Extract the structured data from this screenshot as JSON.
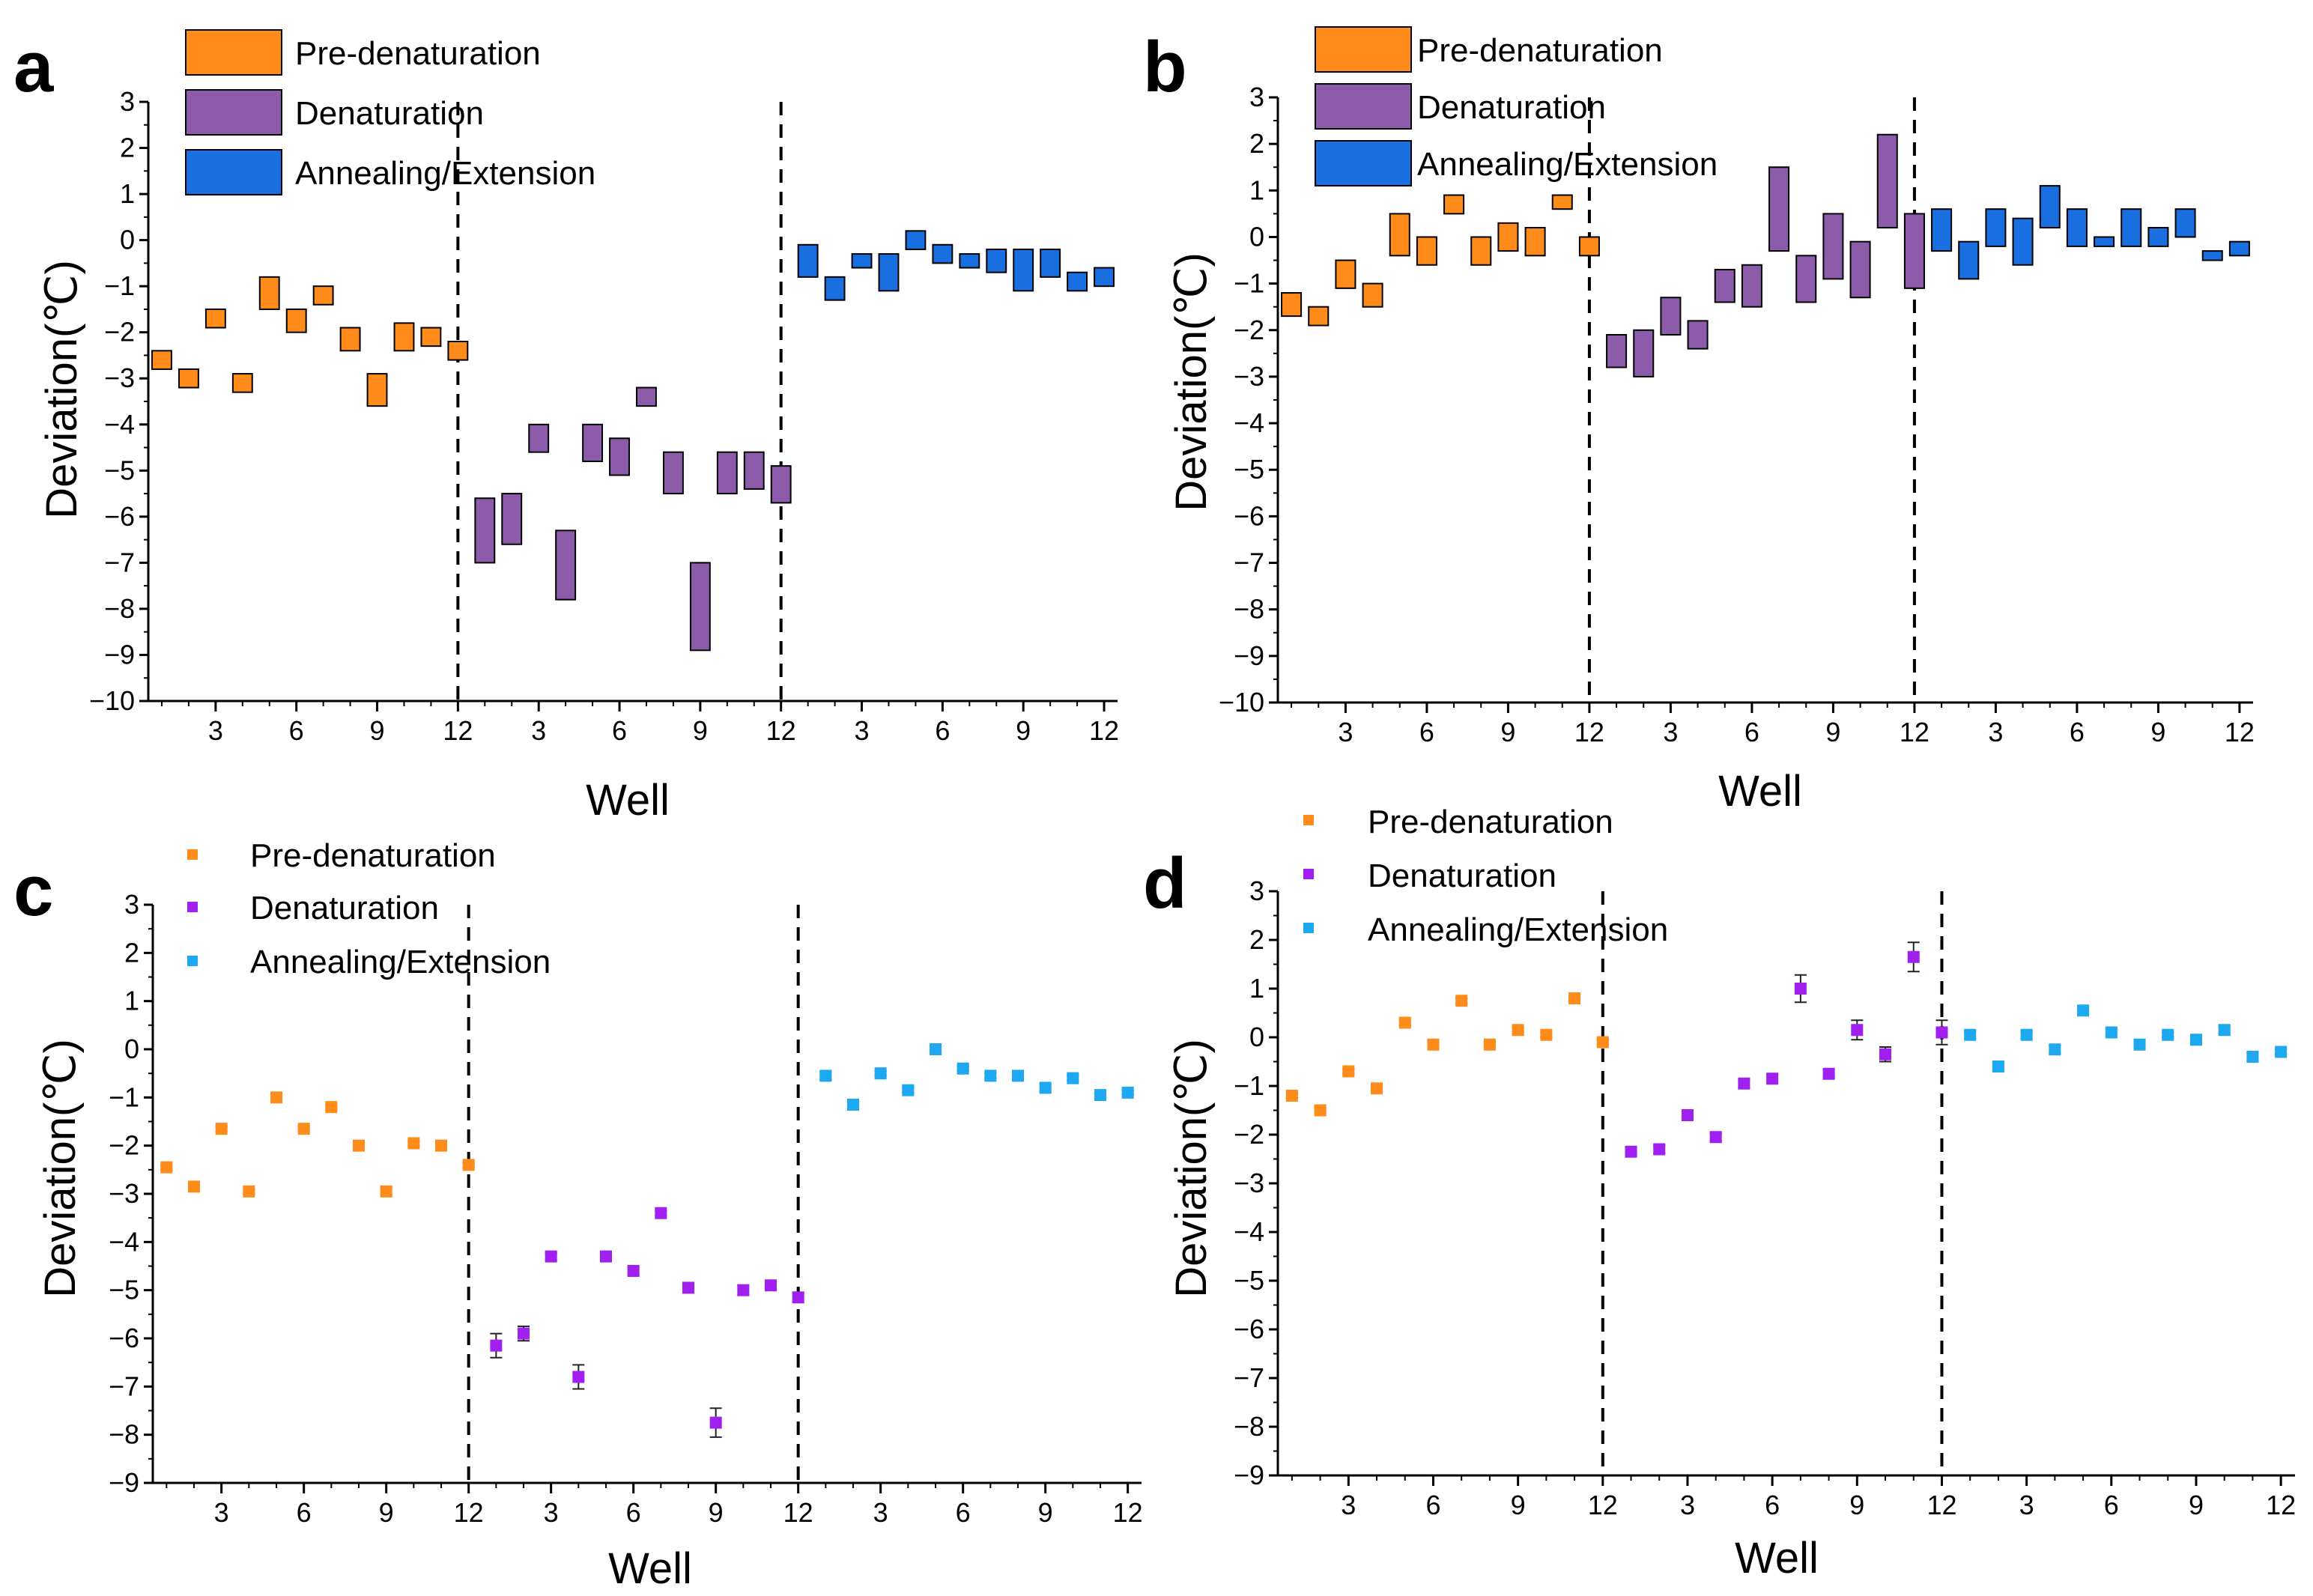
{
  "figure": {
    "layout": "2x2 grid of panels"
  },
  "colors": {
    "pre": "#FF8C1A",
    "den": "#8C5BAA",
    "ann": "#1A6FE0",
    "pre_pt": "#FF8C1A",
    "den_pt": "#A020F0",
    "ann_pt": "#1EA8F0",
    "stroke": "#000000"
  },
  "chart_data": [
    {
      "panel": "a",
      "type": "box",
      "xlabel": "Well",
      "ylabel": "Deviation(℃)",
      "ylim": [
        -10,
        3
      ],
      "yticks": [
        "3",
        "2",
        "1",
        "0",
        "−1",
        "−2",
        "−3",
        "−4",
        "−5",
        "−6",
        "−7",
        "−8",
        "−9",
        "−10"
      ],
      "xtick_labels": [
        "3",
        "6",
        "9",
        "12",
        "3",
        "6",
        "9",
        "12",
        "3",
        "6",
        "9",
        "12"
      ],
      "group_dividers_at_well": [
        12,
        24
      ],
      "legend_position": "top-left",
      "series": [
        {
          "name": "Pre-denaturation",
          "color_key": "pre",
          "low": [
            -2.8,
            -3.2,
            -1.9,
            -3.3,
            -1.5,
            -2.0,
            -1.4,
            -2.4,
            -3.6,
            -2.4,
            -2.3,
            -2.6
          ],
          "high": [
            -2.4,
            -2.8,
            -1.5,
            -2.9,
            -0.8,
            -1.5,
            -1.0,
            -1.9,
            -2.9,
            -1.8,
            -1.9,
            -2.2
          ]
        },
        {
          "name": "Denaturation",
          "color_key": "den",
          "low": [
            -7.0,
            -6.6,
            -4.6,
            -7.8,
            -4.8,
            -5.1,
            -3.6,
            -5.5,
            -8.9,
            -5.5,
            -5.4,
            -5.7
          ],
          "high": [
            -5.6,
            -5.5,
            -4.0,
            -6.3,
            -4.0,
            -4.3,
            -3.2,
            -4.6,
            -7.0,
            -4.6,
            -4.6,
            -4.9
          ]
        },
        {
          "name": "Annealing/Extension",
          "color_key": "ann",
          "low": [
            -0.8,
            -1.3,
            -0.6,
            -1.1,
            -0.2,
            -0.5,
            -0.6,
            -0.7,
            -1.1,
            -0.8,
            -1.1,
            -1.0
          ],
          "high": [
            -0.1,
            -0.8,
            -0.3,
            -0.3,
            0.2,
            -0.1,
            -0.3,
            -0.2,
            -0.2,
            -0.2,
            -0.7,
            -0.6
          ]
        }
      ]
    },
    {
      "panel": "b",
      "type": "box",
      "xlabel": "Well",
      "ylabel": "Deviation(℃)",
      "ylim": [
        -10,
        3
      ],
      "yticks": [
        "3",
        "2",
        "1",
        "0",
        "−1",
        "−2",
        "−3",
        "−4",
        "−5",
        "−6",
        "−7",
        "−8",
        "−9",
        "−10"
      ],
      "xtick_labels": [
        "3",
        "6",
        "9",
        "12",
        "3",
        "6",
        "9",
        "12",
        "3",
        "6",
        "9",
        "12"
      ],
      "group_dividers_at_well": [
        12,
        24
      ],
      "legend_position": "top-left",
      "series": [
        {
          "name": "Pre-denaturation",
          "color_key": "pre",
          "low": [
            -1.7,
            -1.9,
            -1.1,
            -1.5,
            -0.4,
            -0.6,
            0.5,
            -0.6,
            -0.3,
            -0.4,
            0.6,
            -0.4
          ],
          "high": [
            -1.2,
            -1.5,
            -0.5,
            -1.0,
            0.5,
            0.0,
            0.9,
            0.0,
            0.3,
            0.2,
            0.9,
            0.0
          ]
        },
        {
          "name": "Denaturation",
          "color_key": "den",
          "low": [
            -2.8,
            -3.0,
            -2.1,
            -2.4,
            -1.4,
            -1.5,
            -0.3,
            -1.4,
            -0.9,
            -1.3,
            0.2,
            -1.1
          ],
          "high": [
            -2.1,
            -2.0,
            -1.3,
            -1.8,
            -0.7,
            -0.6,
            1.5,
            -0.4,
            0.5,
            -0.1,
            2.2,
            0.5
          ]
        },
        {
          "name": "Annealing/Extension",
          "color_key": "ann",
          "low": [
            -0.3,
            -0.9,
            -0.2,
            -0.6,
            0.2,
            -0.2,
            -0.2,
            -0.2,
            -0.2,
            0.0,
            -0.5,
            -0.4
          ],
          "high": [
            0.6,
            -0.1,
            0.6,
            0.4,
            1.1,
            0.6,
            0.0,
            0.6,
            0.2,
            0.6,
            -0.3,
            -0.1
          ]
        }
      ]
    },
    {
      "panel": "c",
      "type": "scatter",
      "xlabel": "Well",
      "ylabel": "Deviation(℃)",
      "ylim": [
        -9,
        3
      ],
      "yticks": [
        "3",
        "2",
        "1",
        "0",
        "−1",
        "−2",
        "−3",
        "−4",
        "−5",
        "−6",
        "−7",
        "−8",
        "−9"
      ],
      "xtick_labels": [
        "3",
        "6",
        "9",
        "12",
        "3",
        "6",
        "9",
        "12",
        "3",
        "6",
        "9",
        "12"
      ],
      "group_dividers_at_well": [
        12,
        24
      ],
      "legend_position": "top-left",
      "series": [
        {
          "name": "Pre-denaturation",
          "color_key": "pre_pt",
          "mean": [
            -2.45,
            -2.85,
            -1.65,
            -2.95,
            -1.0,
            -1.65,
            -1.2,
            -2.0,
            -2.95,
            -1.95,
            -2.0,
            -2.4
          ],
          "err": [
            0.05,
            0.05,
            0.05,
            0.05,
            0.05,
            0.05,
            0.05,
            0.05,
            0.08,
            0.05,
            0.05,
            0.05
          ]
        },
        {
          "name": "Denaturation",
          "color_key": "den_pt",
          "mean": [
            -6.15,
            -5.9,
            -4.3,
            -6.8,
            -4.3,
            -4.6,
            -3.4,
            -4.95,
            -7.75,
            -5.0,
            -4.9,
            -5.15
          ],
          "err": [
            0.25,
            0.15,
            0.08,
            0.25,
            0.1,
            0.08,
            0.05,
            0.1,
            0.3,
            0.1,
            0.1,
            0.1
          ]
        },
        {
          "name": "Annealing/Extension",
          "color_key": "ann_pt",
          "mean": [
            -0.55,
            -1.15,
            -0.5,
            -0.85,
            0.0,
            -0.4,
            -0.55,
            -0.55,
            -0.8,
            -0.6,
            -0.95,
            -0.9
          ],
          "err": [
            0.08,
            0.08,
            0.05,
            0.05,
            0.05,
            0.05,
            0.05,
            0.05,
            0.08,
            0.05,
            0.05,
            0.05
          ]
        }
      ]
    },
    {
      "panel": "d",
      "type": "scatter",
      "xlabel": "Well",
      "ylabel": "Deviation(℃)",
      "ylim": [
        -9,
        3
      ],
      "yticks": [
        "3",
        "2",
        "1",
        "0",
        "−1",
        "−2",
        "−3",
        "−4",
        "−5",
        "−6",
        "−7",
        "−8",
        "−9"
      ],
      "xtick_labels": [
        "3",
        "6",
        "9",
        "12",
        "3",
        "6",
        "9",
        "12",
        "3",
        "6",
        "9",
        "12"
      ],
      "group_dividers_at_well": [
        12,
        24
      ],
      "legend_position": "top-left",
      "series": [
        {
          "name": "Pre-denaturation",
          "color_key": "pre_pt",
          "mean": [
            -1.2,
            -1.5,
            -0.7,
            -1.05,
            0.3,
            -0.15,
            0.75,
            -0.15,
            0.15,
            0.05,
            0.8,
            -0.1
          ],
          "err": [
            0.05,
            0.05,
            0.05,
            0.05,
            0.05,
            0.05,
            0.05,
            0.05,
            0.05,
            0.05,
            0.05,
            0.05
          ]
        },
        {
          "name": "Denaturation",
          "color_key": "den_pt",
          "mean": [
            -2.35,
            -2.3,
            -1.6,
            -2.05,
            -0.95,
            -0.85,
            1.0,
            -0.75,
            0.15,
            -0.35,
            1.65,
            0.1
          ],
          "err": [
            0.08,
            0.08,
            0.08,
            0.08,
            0.08,
            0.08,
            0.28,
            0.08,
            0.2,
            0.15,
            0.3,
            0.25
          ]
        },
        {
          "name": "Annealing/Extension",
          "color_key": "ann_pt",
          "mean": [
            0.05,
            -0.6,
            0.05,
            -0.25,
            0.55,
            0.1,
            -0.15,
            0.05,
            -0.05,
            0.15,
            -0.4,
            -0.3
          ],
          "err": [
            0.08,
            0.08,
            0.08,
            0.08,
            0.08,
            0.08,
            0.08,
            0.05,
            0.05,
            0.08,
            0.08,
            0.05
          ]
        }
      ]
    }
  ]
}
